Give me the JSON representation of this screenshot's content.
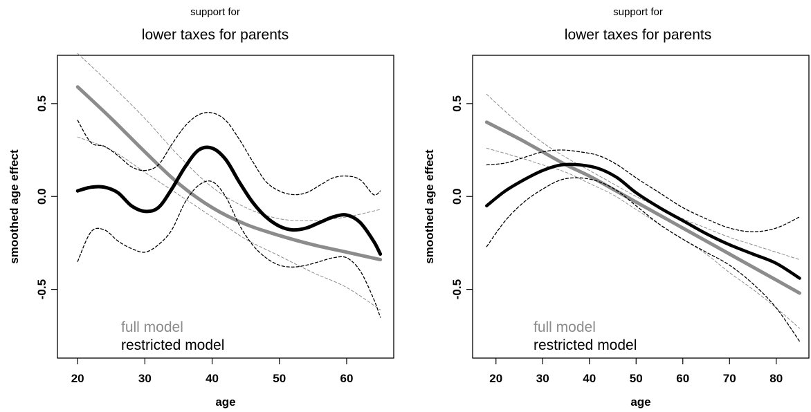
{
  "chart_data": [
    {
      "type": "line",
      "supertitle": "support for",
      "title": "lower taxes for parents",
      "xlabel": "age",
      "ylabel": "smoothed age effect",
      "xlim": [
        17,
        67
      ],
      "ylim": [
        -0.87,
        0.76
      ],
      "xticks": [
        20,
        30,
        40,
        50,
        60
      ],
      "yticks": [
        0.5,
        0.0,
        -0.5
      ],
      "ytick_labels": [
        "0.5",
        "0.0",
        "-0.5"
      ],
      "legend": [
        {
          "label": "full model",
          "color": "#8c8c8c"
        },
        {
          "label": "restricted model",
          "color": "#000000"
        }
      ],
      "legend_position": "bottom-left",
      "series": [
        {
          "name": "full model",
          "color": "#8c8c8c",
          "style": "solid",
          "width": 5,
          "x": [
            20,
            25,
            30,
            35,
            40,
            45,
            50,
            55,
            60,
            65
          ],
          "y": [
            0.59,
            0.42,
            0.24,
            0.07,
            -0.06,
            -0.15,
            -0.21,
            -0.26,
            -0.3,
            -0.34
          ]
        },
        {
          "name": "full model upper",
          "color": "#8c8c8c",
          "style": "dashed",
          "width": 1,
          "x": [
            20,
            25,
            30,
            35,
            40,
            45,
            50,
            55,
            60,
            65
          ],
          "y": [
            0.77,
            0.6,
            0.42,
            0.22,
            0.05,
            -0.06,
            -0.12,
            -0.13,
            -0.11,
            -0.07
          ]
        },
        {
          "name": "full model lower",
          "color": "#8c8c8c",
          "style": "dashed",
          "width": 1,
          "x": [
            20,
            25,
            30,
            35,
            40,
            45,
            50,
            55,
            60,
            65
          ],
          "y": [
            0.32,
            0.25,
            0.13,
            0.01,
            -0.11,
            -0.23,
            -0.32,
            -0.41,
            -0.49,
            -0.61
          ]
        },
        {
          "name": "restricted model",
          "color": "#000000",
          "style": "solid",
          "width": 5,
          "x": [
            20,
            22,
            24,
            26,
            28,
            30,
            32,
            34,
            36,
            38,
            40,
            42,
            44,
            46,
            48,
            50,
            52,
            54,
            56,
            58,
            60,
            62,
            64,
            65
          ],
          "y": [
            0.03,
            0.05,
            0.05,
            0.02,
            -0.05,
            -0.08,
            -0.06,
            0.04,
            0.16,
            0.25,
            0.26,
            0.2,
            0.08,
            -0.03,
            -0.11,
            -0.16,
            -0.18,
            -0.17,
            -0.14,
            -0.11,
            -0.1,
            -0.14,
            -0.24,
            -0.31
          ]
        },
        {
          "name": "restricted model upper",
          "color": "#000000",
          "style": "dashed",
          "width": 1.3,
          "x": [
            20,
            22,
            24,
            26,
            28,
            30,
            32,
            34,
            36,
            38,
            40,
            42,
            44,
            46,
            48,
            50,
            52,
            54,
            56,
            58,
            60,
            62,
            64,
            65
          ],
          "y": [
            0.41,
            0.29,
            0.27,
            0.22,
            0.16,
            0.14,
            0.17,
            0.28,
            0.38,
            0.44,
            0.45,
            0.41,
            0.31,
            0.19,
            0.08,
            0.03,
            0.01,
            0.02,
            0.06,
            0.1,
            0.11,
            0.09,
            0.01,
            0.03
          ]
        },
        {
          "name": "restricted model lower",
          "color": "#000000",
          "style": "dashed",
          "width": 1.3,
          "x": [
            20,
            22,
            24,
            26,
            28,
            30,
            32,
            34,
            36,
            38,
            40,
            42,
            44,
            46,
            48,
            50,
            52,
            54,
            56,
            58,
            60,
            62,
            64,
            65
          ],
          "y": [
            -0.35,
            -0.19,
            -0.18,
            -0.24,
            -0.28,
            -0.3,
            -0.26,
            -0.18,
            -0.03,
            0.06,
            0.08,
            0.0,
            -0.15,
            -0.26,
            -0.33,
            -0.37,
            -0.38,
            -0.37,
            -0.35,
            -0.33,
            -0.33,
            -0.4,
            -0.55,
            -0.65
          ]
        }
      ]
    },
    {
      "type": "line",
      "supertitle": "support for",
      "title": "lower taxes for parents",
      "xlabel": "age",
      "ylabel": "smoothed age effect",
      "xlim": [
        15,
        87
      ],
      "ylim": [
        -0.87,
        0.76
      ],
      "xticks": [
        20,
        30,
        40,
        50,
        60,
        70,
        80
      ],
      "yticks": [
        0.5,
        0.0,
        -0.5
      ],
      "ytick_labels": [
        "0.5",
        "0.0",
        "-0.5"
      ],
      "legend": [
        {
          "label": "full model",
          "color": "#8c8c8c"
        },
        {
          "label": "restricted model",
          "color": "#000000"
        }
      ],
      "legend_position": "bottom-left",
      "series": [
        {
          "name": "full model",
          "color": "#8c8c8c",
          "style": "solid",
          "width": 5,
          "x": [
            18,
            25,
            30,
            35,
            40,
            45,
            50,
            55,
            60,
            65,
            70,
            75,
            80,
            85
          ],
          "y": [
            0.4,
            0.31,
            0.24,
            0.17,
            0.11,
            0.04,
            -0.03,
            -0.1,
            -0.17,
            -0.24,
            -0.31,
            -0.38,
            -0.45,
            -0.52
          ]
        },
        {
          "name": "full model upper",
          "color": "#8c8c8c",
          "style": "dashed",
          "width": 1,
          "x": [
            18,
            25,
            30,
            35,
            40,
            45,
            50,
            55,
            60,
            65,
            70,
            75,
            80,
            85
          ],
          "y": [
            0.55,
            0.39,
            0.29,
            0.21,
            0.14,
            0.07,
            0.0,
            -0.06,
            -0.12,
            -0.17,
            -0.22,
            -0.26,
            -0.3,
            -0.34
          ]
        },
        {
          "name": "full model lower",
          "color": "#8c8c8c",
          "style": "dashed",
          "width": 1,
          "x": [
            18,
            25,
            30,
            35,
            40,
            45,
            50,
            55,
            60,
            65,
            70,
            75,
            80,
            85
          ],
          "y": [
            0.26,
            0.21,
            0.17,
            0.13,
            0.07,
            0.01,
            -0.07,
            -0.15,
            -0.23,
            -0.31,
            -0.41,
            -0.5,
            -0.6,
            -0.71
          ]
        },
        {
          "name": "restricted model",
          "color": "#000000",
          "style": "solid",
          "width": 4.5,
          "x": [
            18,
            22,
            26,
            30,
            34,
            38,
            42,
            46,
            50,
            55,
            60,
            65,
            70,
            75,
            80,
            85
          ],
          "y": [
            -0.05,
            0.03,
            0.09,
            0.14,
            0.17,
            0.17,
            0.15,
            0.1,
            0.02,
            -0.06,
            -0.13,
            -0.2,
            -0.26,
            -0.31,
            -0.36,
            -0.44
          ]
        },
        {
          "name": "restricted model upper",
          "color": "#000000",
          "style": "dashed",
          "width": 1.3,
          "x": [
            18,
            22,
            26,
            30,
            34,
            38,
            42,
            46,
            50,
            55,
            60,
            65,
            70,
            75,
            80,
            85
          ],
          "y": [
            0.17,
            0.18,
            0.21,
            0.24,
            0.25,
            0.24,
            0.22,
            0.17,
            0.1,
            0.02,
            -0.06,
            -0.12,
            -0.17,
            -0.19,
            -0.17,
            -0.11
          ]
        },
        {
          "name": "restricted model lower",
          "color": "#000000",
          "style": "dashed",
          "width": 1.3,
          "x": [
            18,
            22,
            26,
            30,
            34,
            38,
            42,
            46,
            50,
            55,
            60,
            65,
            70,
            75,
            80,
            85
          ],
          "y": [
            -0.27,
            -0.13,
            -0.03,
            0.04,
            0.09,
            0.1,
            0.08,
            0.03,
            -0.05,
            -0.15,
            -0.23,
            -0.3,
            -0.37,
            -0.47,
            -0.6,
            -0.78
          ]
        }
      ]
    }
  ]
}
